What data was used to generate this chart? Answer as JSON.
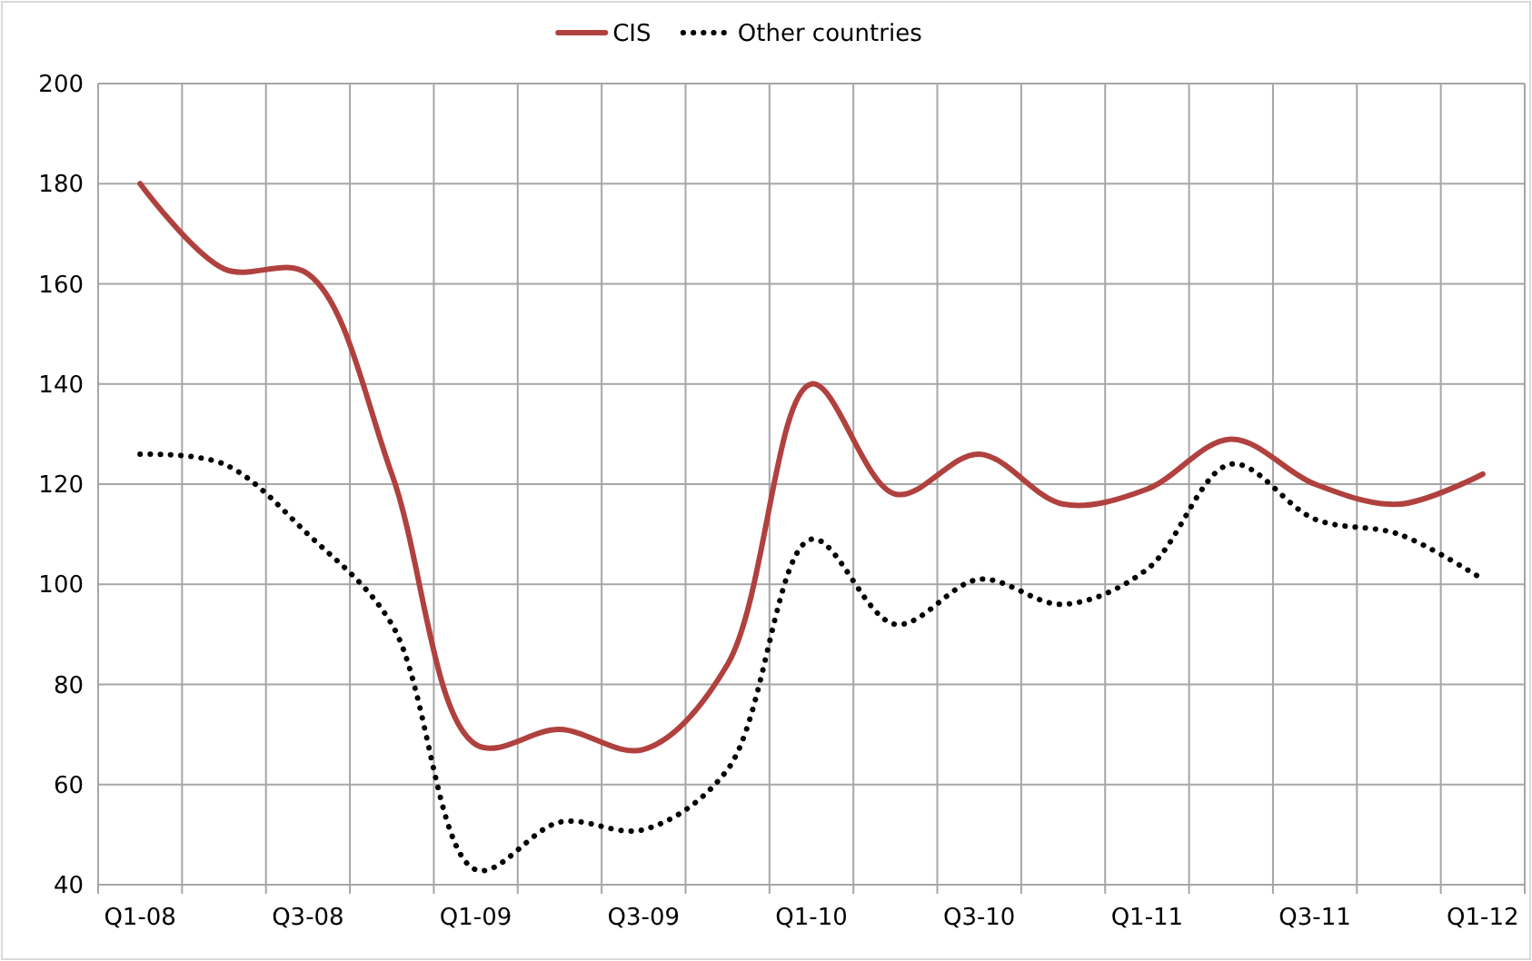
{
  "chart_data": {
    "type": "line",
    "categories": [
      "Q1-08",
      null,
      "Q3-08",
      null,
      "Q1-09",
      null,
      "Q3-09",
      null,
      "Q1-10",
      null,
      "Q3-10",
      null,
      "Q1-11",
      null,
      "Q3-11",
      null,
      "Q1-12"
    ],
    "series": [
      {
        "name": "CIS",
        "color": "#b0413e",
        "line_style": "solid",
        "values": [
          180,
          163,
          162,
          122,
          68,
          71,
          67,
          84,
          140,
          118,
          126,
          116,
          119,
          129,
          120,
          116,
          122
        ]
      },
      {
        "name": "Other countries",
        "color": "#000000",
        "line_style": "dotted",
        "values": [
          126,
          124,
          110,
          92,
          43,
          52.5,
          51,
          63,
          109,
          92,
          101,
          96,
          103,
          124,
          113,
          110,
          101
        ]
      }
    ],
    "ylim": [
      40,
      200
    ],
    "yticks": [
      40,
      60,
      80,
      100,
      120,
      140,
      160,
      180,
      200
    ],
    "grid": true,
    "legend": "top",
    "marker": "none"
  }
}
